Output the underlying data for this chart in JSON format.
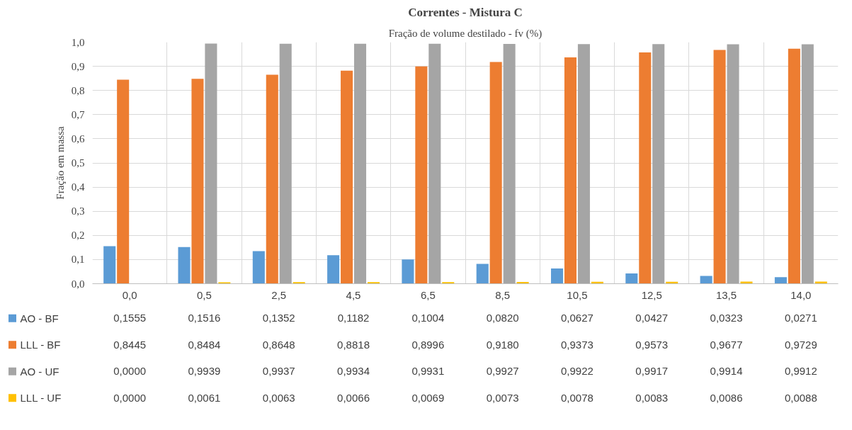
{
  "chart_data": {
    "type": "bar",
    "title": "Correntes - Mistura C",
    "subtitle": "Fração de volume destilado - fv (%)",
    "ylabel": "Fração em massa",
    "categories": [
      "0,0",
      "0,5",
      "2,5",
      "4,5",
      "6,5",
      "8,5",
      "10,5",
      "12,5",
      "13,5",
      "14,0"
    ],
    "series": [
      {
        "name": "AO - BF",
        "color": "#5b9bd5",
        "values": [
          0.1555,
          0.1516,
          0.1352,
          0.1182,
          0.1004,
          0.082,
          0.0627,
          0.0427,
          0.0323,
          0.0271
        ],
        "value_labels": [
          "0,1555",
          "0,1516",
          "0,1352",
          "0,1182",
          "0,1004",
          "0,0820",
          "0,0627",
          "0,0427",
          "0,0323",
          "0,0271"
        ]
      },
      {
        "name": "LLL - BF",
        "color": "#ed7d31",
        "values": [
          0.8445,
          0.8484,
          0.8648,
          0.8818,
          0.8996,
          0.918,
          0.9373,
          0.9573,
          0.9677,
          0.9729
        ],
        "value_labels": [
          "0,8445",
          "0,8484",
          "0,8648",
          "0,8818",
          "0,8996",
          "0,9180",
          "0,9373",
          "0,9573",
          "0,9677",
          "0,9729"
        ]
      },
      {
        "name": "AO - UF",
        "color": "#a5a5a5",
        "values": [
          0.0,
          0.9939,
          0.9937,
          0.9934,
          0.9931,
          0.9927,
          0.9922,
          0.9917,
          0.9914,
          0.9912
        ],
        "value_labels": [
          "0,0000",
          "0,9939",
          "0,9937",
          "0,9934",
          "0,9931",
          "0,9927",
          "0,9922",
          "0,9917",
          "0,9914",
          "0,9912"
        ]
      },
      {
        "name": "LLL - UF",
        "color": "#ffc000",
        "values": [
          0.0,
          0.0061,
          0.0063,
          0.0066,
          0.0069,
          0.0073,
          0.0078,
          0.0083,
          0.0086,
          0.0088
        ],
        "value_labels": [
          "0,0000",
          "0,0061",
          "0,0063",
          "0,0066",
          "0,0069",
          "0,0073",
          "0,0078",
          "0,0083",
          "0,0086",
          "0,0088"
        ]
      }
    ],
    "ylim": [
      0,
      1.0
    ],
    "yticks": [
      {
        "value": 0,
        "label": "0,0"
      },
      {
        "value": 0.1,
        "label": "0,1"
      },
      {
        "value": 0.2,
        "label": "0,2"
      },
      {
        "value": 0.3,
        "label": "0,3"
      },
      {
        "value": 0.4,
        "label": "0,4"
      },
      {
        "value": 0.5,
        "label": "0,5"
      },
      {
        "value": 0.6,
        "label": "0,6"
      },
      {
        "value": 0.7,
        "label": "0,7"
      },
      {
        "value": 0.8,
        "label": "0,8"
      },
      {
        "value": 0.9,
        "label": "0,9"
      },
      {
        "value": 1.0,
        "label": "1,0"
      }
    ],
    "grid": true,
    "legend": "bottom"
  }
}
